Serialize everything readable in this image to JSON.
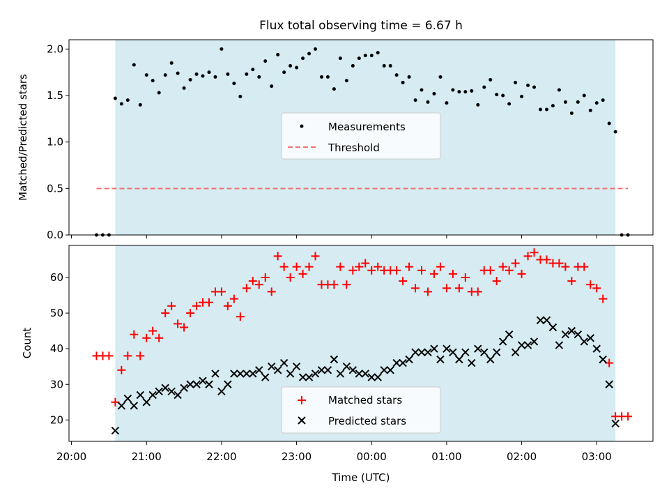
{
  "chart_data": [
    {
      "type": "scatter",
      "title": "Flux total observing time = 6.67 h",
      "ylabel": "Matched/Predicted stars",
      "ylim": [
        0,
        2.1
      ],
      "yticks": [
        0.0,
        0.5,
        1.0,
        1.5,
        2.0
      ],
      "ytick_labels": [
        "0.0",
        "0.5",
        "1.0",
        "1.5",
        "2.0"
      ],
      "shaded_interval": {
        "start": "20:35",
        "end": "03:15",
        "color": "#add8e6"
      },
      "legend_position": "center",
      "series": [
        {
          "name": "Measurements",
          "marker": "dot",
          "color": "#000000",
          "x": [
            "20:20",
            "20:25",
            "20:30",
            "20:35",
            "20:40",
            "20:45",
            "20:50",
            "20:55",
            "21:00",
            "21:05",
            "21:10",
            "21:15",
            "21:20",
            "21:25",
            "21:30",
            "21:35",
            "21:40",
            "21:45",
            "21:50",
            "21:55",
            "22:00",
            "22:05",
            "22:10",
            "22:15",
            "22:20",
            "22:25",
            "22:30",
            "22:35",
            "22:40",
            "22:45",
            "22:50",
            "22:55",
            "23:00",
            "23:05",
            "23:10",
            "23:15",
            "23:20",
            "23:25",
            "23:30",
            "23:35",
            "23:40",
            "23:45",
            "23:50",
            "23:55",
            "00:00",
            "00:05",
            "00:10",
            "00:15",
            "00:20",
            "00:25",
            "00:30",
            "00:35",
            "00:40",
            "00:45",
            "00:50",
            "00:55",
            "01:00",
            "01:05",
            "01:10",
            "01:15",
            "01:20",
            "01:25",
            "01:30",
            "01:35",
            "01:40",
            "01:45",
            "01:50",
            "01:55",
            "02:00",
            "02:05",
            "02:10",
            "02:15",
            "02:20",
            "02:25",
            "02:30",
            "02:35",
            "02:40",
            "02:45",
            "02:50",
            "02:55",
            "03:00",
            "03:05",
            "03:10",
            "03:15",
            "03:20",
            "03:25"
          ],
          "y": [
            0.0,
            0.0,
            0.0,
            1.47,
            1.41,
            1.45,
            1.83,
            1.4,
            1.72,
            1.66,
            1.53,
            1.72,
            1.85,
            1.74,
            1.58,
            1.67,
            1.73,
            1.71,
            1.75,
            1.7,
            2.0,
            1.73,
            1.63,
            1.49,
            1.73,
            1.78,
            1.7,
            1.87,
            1.6,
            1.94,
            1.75,
            1.82,
            1.8,
            1.9,
            1.95,
            2.0,
            1.7,
            1.7,
            1.57,
            1.9,
            1.66,
            1.82,
            1.9,
            1.93,
            1.93,
            1.96,
            1.82,
            1.82,
            1.72,
            1.64,
            1.7,
            1.45,
            1.56,
            1.43,
            1.52,
            1.7,
            1.42,
            1.56,
            1.54,
            1.54,
            1.55,
            1.4,
            1.59,
            1.67,
            1.51,
            1.5,
            1.41,
            1.64,
            1.49,
            1.61,
            1.59,
            1.35,
            1.35,
            1.39,
            1.56,
            1.43,
            1.31,
            1.43,
            1.5,
            1.34,
            1.42,
            1.45,
            1.2,
            1.11,
            0.0,
            0.0
          ]
        },
        {
          "name": "Threshold",
          "marker": "dashed-line",
          "color": "#f07070",
          "x": [
            "20:20",
            "03:25"
          ],
          "y": [
            0.5,
            0.5
          ]
        }
      ]
    },
    {
      "type": "scatter",
      "xlabel": "Time (UTC)",
      "ylabel": "Count",
      "ylim": [
        14,
        69
      ],
      "yticks": [
        20,
        30,
        40,
        50,
        60
      ],
      "ytick_labels": [
        "20",
        "30",
        "40",
        "50",
        "60"
      ],
      "xticks": [
        "20:00",
        "21:00",
        "22:00",
        "23:00",
        "00:00",
        "01:00",
        "02:00",
        "03:00"
      ],
      "xtick_labels": [
        "20:00",
        "21:00",
        "22:00",
        "23:00",
        "00:00",
        "01:00",
        "02:00",
        "03:00"
      ],
      "shaded_interval": {
        "start": "20:35",
        "end": "03:15",
        "color": "#add8e6"
      },
      "legend_position": "lower center",
      "series": [
        {
          "name": "Matched stars",
          "marker": "plus",
          "color": "#ff0000",
          "x": [
            "20:20",
            "20:25",
            "20:30",
            "20:35",
            "20:40",
            "20:45",
            "20:50",
            "20:55",
            "21:00",
            "21:05",
            "21:10",
            "21:15",
            "21:20",
            "21:25",
            "21:30",
            "21:35",
            "21:40",
            "21:45",
            "21:50",
            "21:55",
            "22:00",
            "22:05",
            "22:10",
            "22:15",
            "22:20",
            "22:25",
            "22:30",
            "22:35",
            "22:40",
            "22:45",
            "22:50",
            "22:55",
            "23:00",
            "23:05",
            "23:10",
            "23:15",
            "23:20",
            "23:25",
            "23:30",
            "23:35",
            "23:40",
            "23:45",
            "23:50",
            "23:55",
            "00:00",
            "00:05",
            "00:10",
            "00:15",
            "00:20",
            "00:25",
            "00:30",
            "00:35",
            "00:40",
            "00:45",
            "00:50",
            "00:55",
            "01:00",
            "01:05",
            "01:10",
            "01:15",
            "01:20",
            "01:25",
            "01:30",
            "01:35",
            "01:40",
            "01:45",
            "01:50",
            "01:55",
            "02:00",
            "02:05",
            "02:10",
            "02:15",
            "02:20",
            "02:25",
            "02:30",
            "02:35",
            "02:40",
            "02:45",
            "02:50",
            "02:55",
            "03:00",
            "03:05",
            "03:10",
            "03:15",
            "03:20",
            "03:25"
          ],
          "y": [
            38,
            38,
            38,
            25,
            34,
            38,
            44,
            38,
            43,
            45,
            43,
            50,
            52,
            47,
            46,
            50,
            52,
            53,
            53,
            56,
            56,
            52,
            54,
            49,
            57,
            59,
            58,
            60,
            56,
            66,
            63,
            60,
            63,
            61,
            63,
            66,
            58,
            58,
            58,
            63,
            58,
            62,
            63,
            64,
            62,
            63,
            62,
            62,
            62,
            59,
            63,
            57,
            62,
            56,
            61,
            63,
            57,
            61,
            57,
            60,
            56,
            56,
            62,
            62,
            59,
            63,
            62,
            64,
            61,
            66,
            67,
            65,
            65,
            64,
            64,
            63,
            59,
            63,
            63,
            58,
            57,
            54,
            36,
            21,
            21,
            21
          ]
        },
        {
          "name": "Predicted stars",
          "marker": "x",
          "color": "#000000",
          "x": [
            "20:35",
            "20:40",
            "20:45",
            "20:50",
            "20:55",
            "21:00",
            "21:05",
            "21:10",
            "21:15",
            "21:20",
            "21:25",
            "21:30",
            "21:35",
            "21:40",
            "21:45",
            "21:50",
            "21:55",
            "22:00",
            "22:05",
            "22:10",
            "22:15",
            "22:20",
            "22:25",
            "22:30",
            "22:35",
            "22:40",
            "22:45",
            "22:50",
            "22:55",
            "23:00",
            "23:05",
            "23:10",
            "23:15",
            "23:20",
            "23:25",
            "23:30",
            "23:35",
            "23:40",
            "23:45",
            "23:50",
            "23:55",
            "00:00",
            "00:05",
            "00:10",
            "00:15",
            "00:20",
            "00:25",
            "00:30",
            "00:35",
            "00:40",
            "00:45",
            "00:50",
            "00:55",
            "01:00",
            "01:05",
            "01:10",
            "01:15",
            "01:20",
            "01:25",
            "01:30",
            "01:35",
            "01:40",
            "01:45",
            "01:50",
            "01:55",
            "02:00",
            "02:05",
            "02:10",
            "02:15",
            "02:20",
            "02:25",
            "02:30",
            "02:35",
            "02:40",
            "02:45",
            "02:50",
            "02:55",
            "03:00",
            "03:05",
            "03:10",
            "03:15"
          ],
          "y": [
            17,
            24,
            26,
            24,
            27,
            25,
            27,
            28,
            29,
            28,
            27,
            29,
            30,
            30,
            31,
            30,
            33,
            28,
            30,
            33,
            33,
            33,
            33,
            34,
            32,
            35,
            34,
            36,
            33,
            35,
            32,
            32,
            33,
            34,
            34,
            37,
            33,
            35,
            34,
            33,
            33,
            32,
            32,
            34,
            34,
            36,
            36,
            37,
            39,
            39,
            39,
            40,
            37,
            40,
            39,
            37,
            39,
            36,
            40,
            39,
            37,
            39,
            42,
            44,
            39,
            41,
            41,
            42,
            48,
            48,
            46,
            41,
            44,
            45,
            44,
            42,
            43,
            40,
            37,
            30,
            19
          ]
        }
      ]
    }
  ]
}
